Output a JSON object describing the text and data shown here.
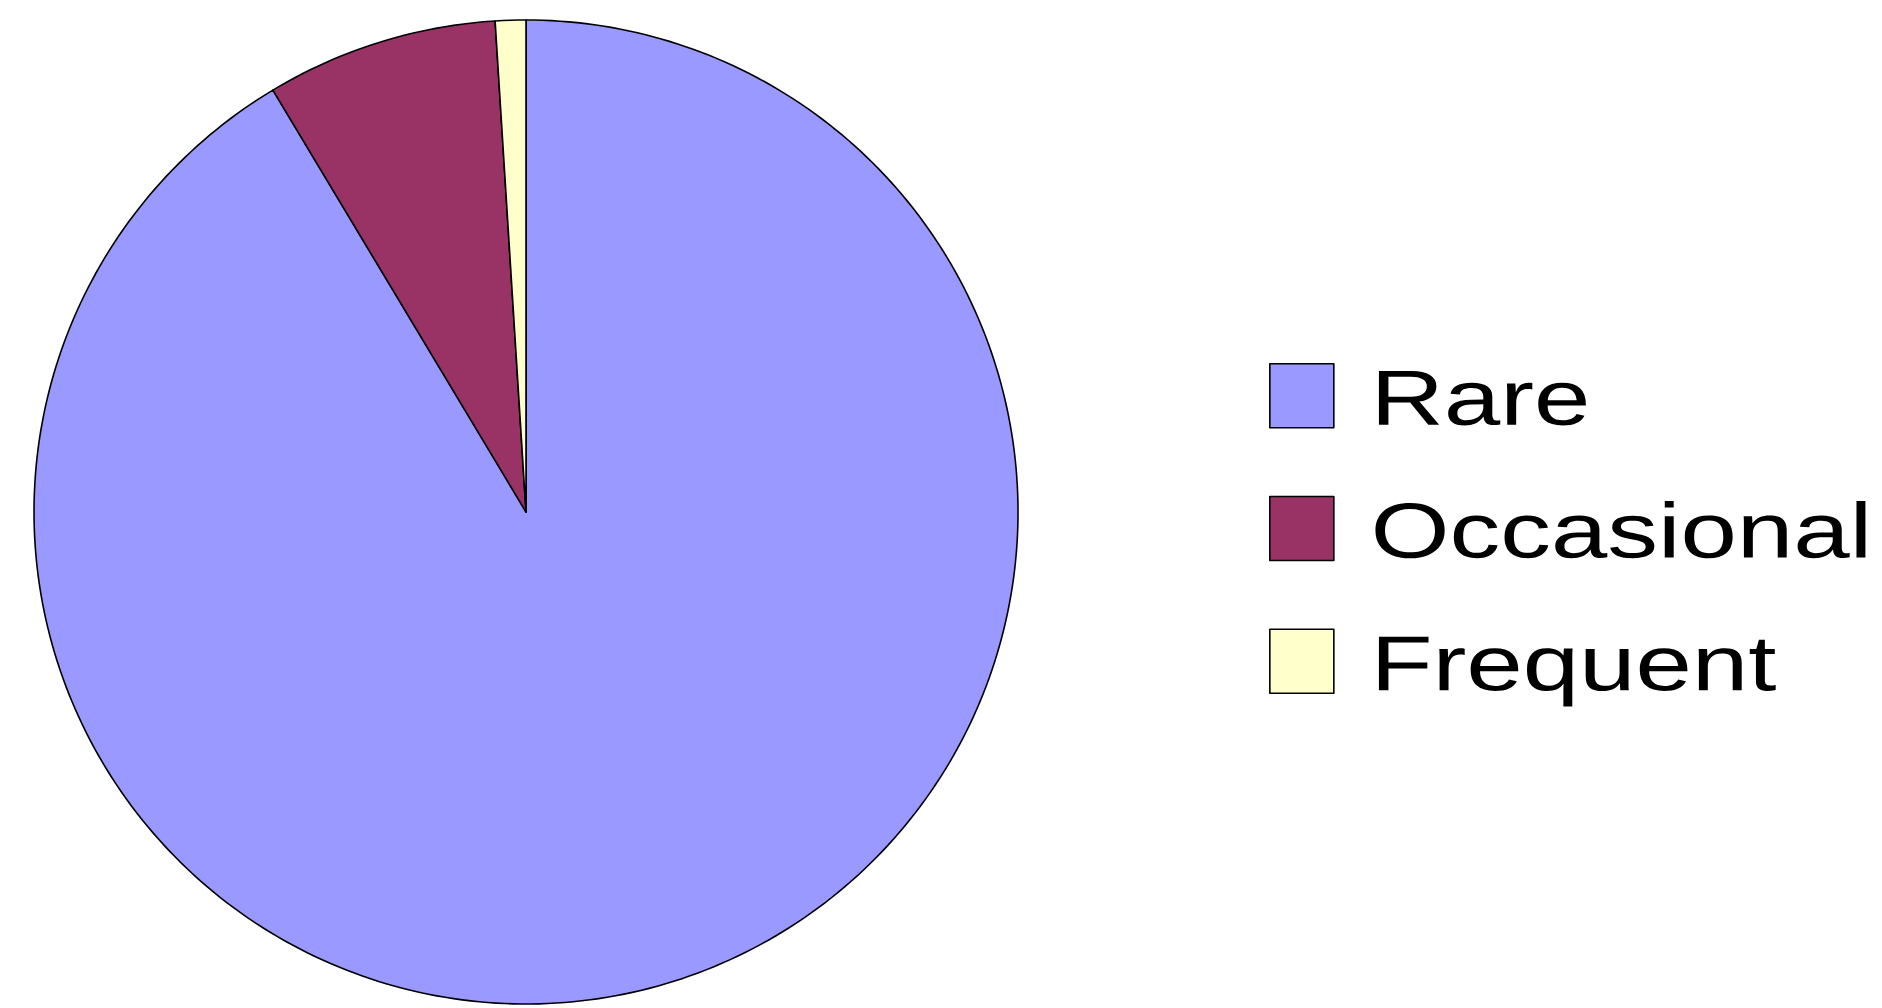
{
  "chart_data": {
    "type": "pie",
    "categories": [
      "Rare",
      "Occasional",
      "Frequent"
    ],
    "values": [
      91.4,
      7.6,
      1.0
    ],
    "colors": [
      "#9999ff",
      "#993366",
      "#ffffcc"
    ],
    "legend": "right"
  }
}
